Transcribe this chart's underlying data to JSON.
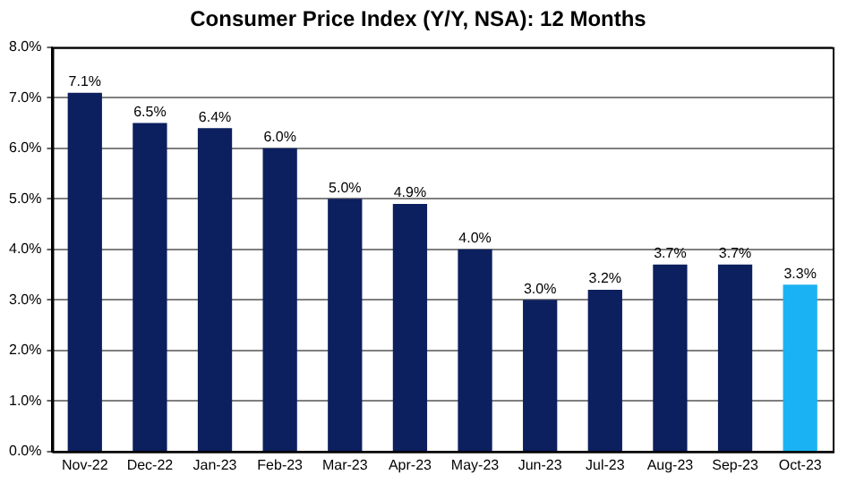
{
  "chart_data": {
    "type": "bar",
    "title": "Consumer Price Index (Y/Y, NSA): 12 Months",
    "categories": [
      "Nov-22",
      "Dec-22",
      "Jan-23",
      "Feb-23",
      "Mar-23",
      "Apr-23",
      "May-23",
      "Jun-23",
      "Jul-23",
      "Aug-23",
      "Sep-23",
      "Oct-23"
    ],
    "values": [
      7.1,
      6.5,
      6.4,
      6.0,
      5.0,
      4.9,
      4.0,
      3.0,
      3.2,
      3.7,
      3.7,
      3.3
    ],
    "colors": [
      "#0c1f5e",
      "#0c1f5e",
      "#0c1f5e",
      "#0c1f5e",
      "#0c1f5e",
      "#0c1f5e",
      "#0c1f5e",
      "#0c1f5e",
      "#0c1f5e",
      "#0c1f5e",
      "#0c1f5e",
      "#1ab2f2"
    ],
    "value_labels": [
      "7.1%",
      "6.5%",
      "6.4%",
      "6.0%",
      "5.0%",
      "4.9%",
      "4.0%",
      "3.0%",
      "3.2%",
      "3.7%",
      "3.7%",
      "3.3%"
    ],
    "ylim": [
      0,
      8
    ],
    "yticks": [
      {
        "value": 0,
        "label": "0.0%"
      },
      {
        "value": 1,
        "label": "1.0%"
      },
      {
        "value": 2,
        "label": "2.0%"
      },
      {
        "value": 3,
        "label": "3.0%"
      },
      {
        "value": 4,
        "label": "4.0%"
      },
      {
        "value": 5,
        "label": "5.0%"
      },
      {
        "value": 6,
        "label": "6.0%"
      },
      {
        "value": 7,
        "label": "7.0%"
      },
      {
        "value": 8,
        "label": "8.0%"
      }
    ],
    "grid": "y",
    "legend": false
  }
}
